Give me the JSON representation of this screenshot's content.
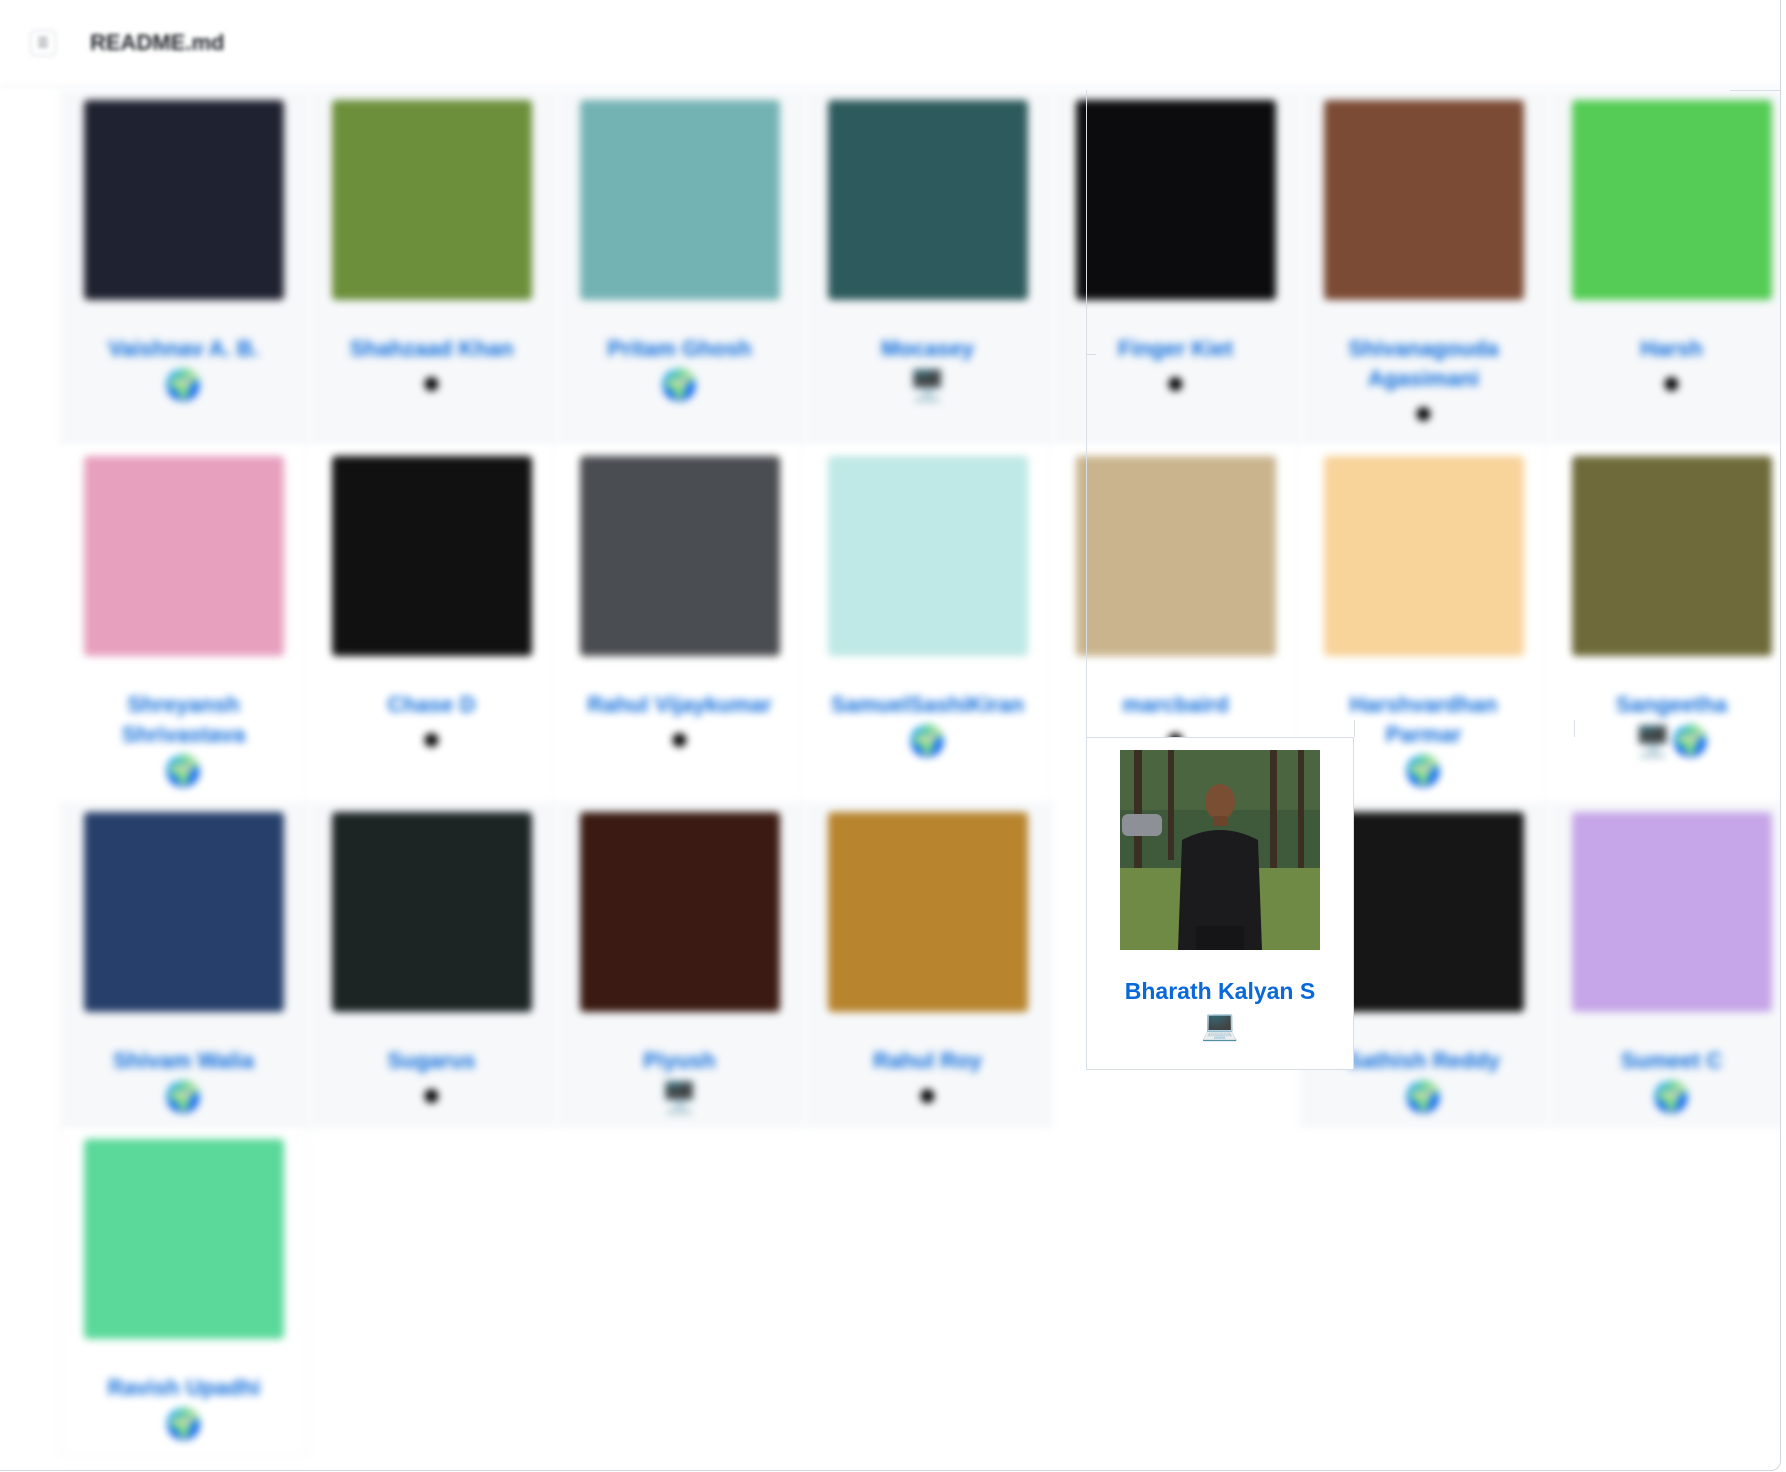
{
  "header": {
    "file_name": "README.md",
    "menu_icon": "list-icon"
  },
  "contributors": {
    "rows": [
      [
        {
          "name": "Vaishnav A. B.",
          "badge": "🌍",
          "color": "#1f2230"
        },
        {
          "name": "Shahzaad Khan",
          "badge": "⚫",
          "color": "#6b8f3a"
        },
        {
          "name": "Pritam Ghosh",
          "badge": "🌍",
          "color": "#74b3b4"
        },
        {
          "name": "Mocasey",
          "badge": "🖥️",
          "color": "#2d5a5c"
        },
        {
          "name": "Finger Kiet",
          "badge": "⚫",
          "color": "#0c0c0e"
        },
        {
          "name": "Shivanagouda Agasimani",
          "badge": "⚫",
          "color": "#7b4b35"
        },
        {
          "name": "Harsh",
          "badge": "⚫",
          "color": "#55cc55"
        }
      ],
      [
        {
          "name": "Shreyansh Shrivastava",
          "badge": "🌍",
          "color": "#e8a0bf"
        },
        {
          "name": "Chase D",
          "badge": "⚫",
          "color": "#111111"
        },
        {
          "name": "Rahul Vijaykumar",
          "badge": "⚫",
          "color": "#4a4d52"
        },
        {
          "name": "SamuelSashiKiran",
          "badge": "🌍",
          "color": "#bfe9e6"
        },
        {
          "name": "marcbaird",
          "badge": "⚫",
          "color": "#c9b48e"
        },
        {
          "name": "Harshvardhan Parmar",
          "badge": "🌍",
          "color": "#f8d39a"
        },
        {
          "name": "Sangeetha",
          "badge": "🖥️🌍",
          "color": "#6e6a3a"
        }
      ],
      [
        {
          "name": "Shivam Walia",
          "badge": "🌍",
          "color": "#27406b"
        },
        {
          "name": "Sugarus",
          "badge": "⚫",
          "color": "#1c2424"
        },
        {
          "name": "Piyush",
          "badge": "🖥️",
          "color": "#3a1a12"
        },
        {
          "name": "Rahul Roy",
          "badge": "⚫",
          "color": "#b8842e"
        },
        {
          "name": "Bharath Kalyan S",
          "badge": "💻",
          "color": "#5c7a45"
        },
        {
          "name": "Sathish Reddy",
          "badge": "🌍",
          "color": "#161616"
        },
        {
          "name": "Sumeet C",
          "badge": "🌍",
          "color": "#c6a6e8"
        }
      ],
      [
        {
          "name": "Ravish Upadhi",
          "badge": "🌍",
          "color": "#5ad99a"
        }
      ]
    ]
  },
  "highlighted": {
    "name": "Bharath Kalyan S",
    "badge": "💻",
    "icon": "laptop-icon"
  }
}
